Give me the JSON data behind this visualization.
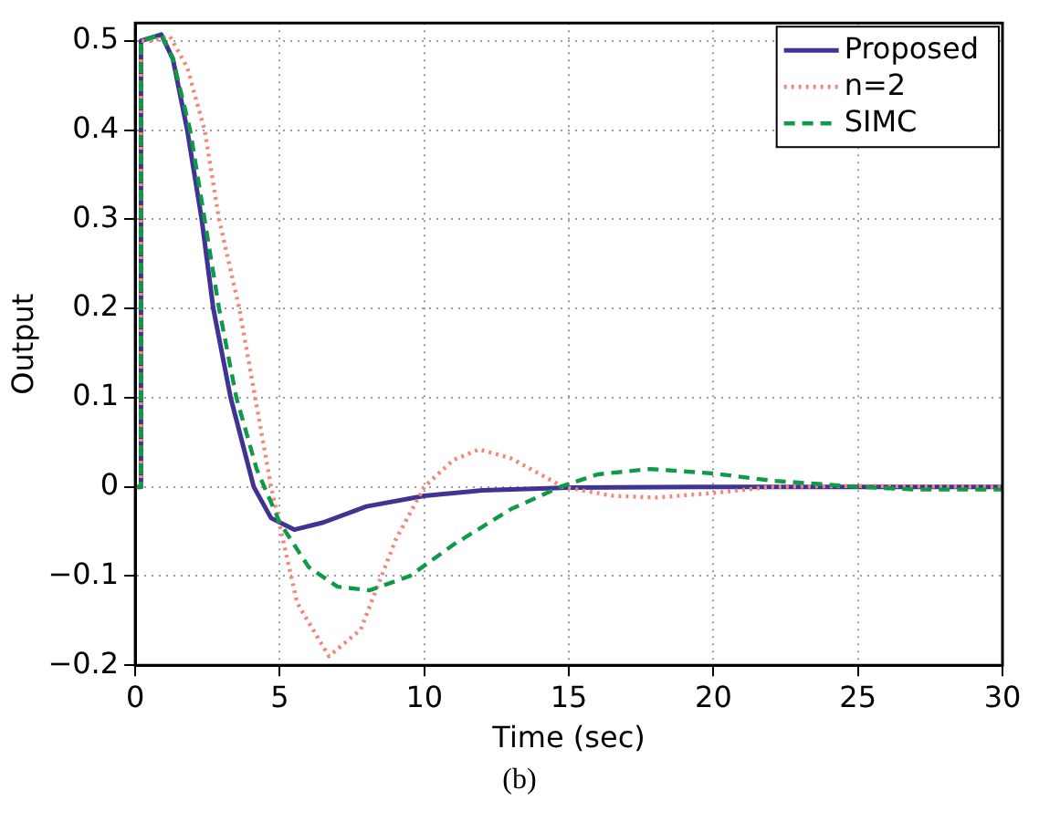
{
  "chart_data": {
    "type": "line",
    "xlabel": "Time (sec)",
    "ylabel": "Output",
    "annotations": [
      "(b)"
    ],
    "xlim": [
      0,
      30
    ],
    "ylim": [
      -0.2,
      0.52
    ],
    "xticks": [
      0,
      5,
      10,
      15,
      20,
      25,
      30
    ],
    "yticks": [
      -0.2,
      -0.1,
      0,
      0.1,
      0.2,
      0.3,
      0.4,
      0.5
    ],
    "grid": true,
    "legend": "top right",
    "marker": "none",
    "series": [
      {
        "name": "Proposed",
        "color": "#3f3393",
        "line_style": "solid",
        "x": [
          0,
          0.2,
          0.2,
          0.5,
          0.9,
          1.3,
          1.8,
          2.3,
          2.7,
          3.3,
          4.1,
          4.7,
          5.5,
          6.5,
          8,
          10,
          12,
          15,
          20,
          25,
          30
        ],
        "values": [
          0,
          0,
          0.5,
          0.503,
          0.507,
          0.48,
          0.4,
          0.3,
          0.2,
          0.1,
          0,
          -0.035,
          -0.048,
          -0.04,
          -0.022,
          -0.01,
          -0.004,
          -0.001,
          0,
          0,
          0
        ]
      },
      {
        "name": "n=2",
        "color": "#f4877a",
        "line_style": "dotted",
        "x": [
          0,
          0.2,
          0.2,
          0.6,
          1.2,
          1.8,
          2.4,
          2.9,
          3.6,
          4.7,
          5.6,
          6.7,
          7.8,
          9,
          10,
          11,
          11.9,
          13,
          14.8,
          16.5,
          18,
          20,
          22,
          25,
          30
        ],
        "values": [
          0,
          0,
          0.5,
          0.5,
          0.505,
          0.47,
          0.4,
          0.3,
          0.2,
          0,
          -0.13,
          -0.19,
          -0.16,
          -0.06,
          0,
          0.03,
          0.042,
          0.032,
          0,
          -0.01,
          -0.012,
          -0.007,
          0,
          0.001,
          0
        ]
      },
      {
        "name": "SIMC",
        "color": "#0f9a4a",
        "line_style": "dashed",
        "x": [
          0,
          0.2,
          0.2,
          0.5,
          0.9,
          1.3,
          1.9,
          2.4,
          2.9,
          3.5,
          4.2,
          5,
          6,
          7,
          8.1,
          9.5,
          11,
          13,
          14.7,
          16,
          17.8,
          20,
          22,
          25,
          27,
          30
        ],
        "values": [
          0,
          0,
          0.5,
          0.503,
          0.507,
          0.48,
          0.4,
          0.3,
          0.2,
          0.1,
          0.02,
          -0.04,
          -0.09,
          -0.112,
          -0.116,
          -0.1,
          -0.065,
          -0.025,
          0,
          0.014,
          0.02,
          0.015,
          0.007,
          0,
          -0.003,
          -0.003
        ]
      }
    ]
  }
}
